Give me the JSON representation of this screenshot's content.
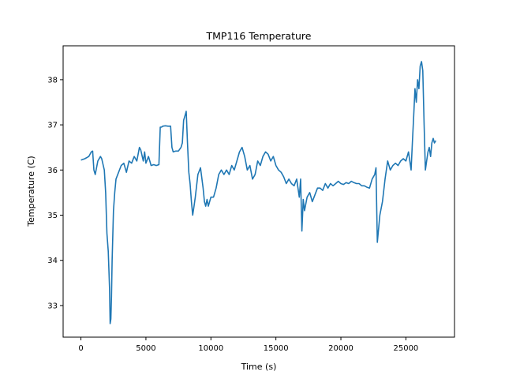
{
  "chart_data": {
    "type": "line",
    "title": "TMP116 Temperature",
    "xlabel": "Time (s)",
    "ylabel": "Temperature (C)",
    "xlim": [
      -1370,
      28740
    ],
    "ylim": [
      32.3,
      38.75
    ],
    "xticks": [
      0,
      5000,
      10000,
      15000,
      20000,
      25000
    ],
    "yticks": [
      33,
      34,
      35,
      36,
      37,
      38
    ],
    "grid": false,
    "line_color": "#1f77b4",
    "series": [
      {
        "x": [
          0,
          300,
          600,
          800,
          900,
          1000,
          1100,
          1300,
          1500,
          1600,
          1800,
          1900,
          2000,
          2100,
          2200,
          2250,
          2300,
          2350,
          2400,
          2500,
          2600,
          2700,
          2900,
          3100,
          3300,
          3500,
          3700,
          3900,
          4100,
          4300,
          4500,
          4600,
          4800,
          4900,
          5000,
          5200,
          5400,
          5600,
          5800,
          6000,
          6100,
          6200,
          6300,
          6500,
          6700,
          6900,
          7000,
          7100,
          7300,
          7500,
          7700,
          7800,
          7900,
          8000,
          8100,
          8200,
          8300,
          8400,
          8500,
          8600,
          8700,
          8800,
          9000,
          9200,
          9400,
          9500,
          9600,
          9700,
          9800,
          10000,
          10200,
          10400,
          10600,
          10800,
          11000,
          11200,
          11400,
          11600,
          11800,
          12000,
          12200,
          12400,
          12600,
          12800,
          13000,
          13200,
          13400,
          13600,
          13800,
          14000,
          14200,
          14400,
          14600,
          14800,
          15000,
          15200,
          15400,
          15600,
          15800,
          16000,
          16200,
          16400,
          16600,
          16800,
          16900,
          17000,
          17100,
          17200,
          17400,
          17600,
          17800,
          18000,
          18200,
          18400,
          18600,
          18800,
          19000,
          19200,
          19400,
          19600,
          19800,
          20000,
          20200,
          20400,
          20600,
          20800,
          21000,
          21200,
          21400,
          21600,
          21800,
          22000,
          22200,
          22400,
          22600,
          22700,
          22800,
          23000,
          23200,
          23400,
          23600,
          23800,
          24000,
          24200,
          24400,
          24600,
          24800,
          25000,
          25200,
          25400,
          25500,
          25600,
          25700,
          25800,
          25900,
          26000,
          26100,
          26200,
          26300,
          26400,
          26500,
          26600,
          26700,
          26800,
          26900,
          27000,
          27100,
          27200,
          27300
        ],
        "y": [
          36.22,
          36.25,
          36.3,
          36.4,
          36.42,
          36.0,
          35.9,
          36.2,
          36.3,
          36.25,
          36.0,
          35.5,
          34.6,
          34.2,
          33.4,
          32.6,
          32.7,
          33.2,
          34.0,
          35.1,
          35.5,
          35.8,
          35.95,
          36.1,
          36.15,
          35.95,
          36.2,
          36.15,
          36.3,
          36.2,
          36.5,
          36.45,
          36.2,
          36.4,
          36.15,
          36.3,
          36.1,
          36.12,
          36.1,
          36.12,
          36.95,
          36.95,
          36.97,
          36.98,
          36.97,
          36.97,
          36.5,
          36.4,
          36.42,
          36.42,
          36.5,
          36.6,
          37.1,
          37.2,
          37.3,
          36.6,
          35.95,
          35.7,
          35.3,
          35.0,
          35.2,
          35.4,
          35.9,
          36.05,
          35.6,
          35.3,
          35.2,
          35.35,
          35.2,
          35.4,
          35.4,
          35.6,
          35.9,
          36.0,
          35.9,
          36.0,
          35.9,
          36.1,
          36.0,
          36.2,
          36.4,
          36.5,
          36.3,
          36.0,
          36.1,
          35.8,
          35.9,
          36.2,
          36.1,
          36.3,
          36.4,
          36.35,
          36.2,
          36.3,
          36.1,
          36.0,
          35.95,
          35.85,
          35.7,
          35.8,
          35.7,
          35.65,
          35.8,
          35.4,
          35.8,
          34.65,
          35.35,
          35.1,
          35.4,
          35.5,
          35.3,
          35.45,
          35.6,
          35.6,
          35.55,
          35.7,
          35.6,
          35.7,
          35.65,
          35.7,
          35.75,
          35.7,
          35.68,
          35.72,
          35.7,
          35.75,
          35.72,
          35.7,
          35.7,
          35.65,
          35.65,
          35.62,
          35.6,
          35.8,
          35.9,
          36.05,
          34.4,
          35.0,
          35.3,
          35.8,
          36.2,
          36.0,
          36.1,
          36.15,
          36.1,
          36.2,
          36.25,
          36.2,
          36.4,
          36.0,
          36.6,
          37.2,
          37.8,
          37.5,
          38.0,
          37.8,
          38.3,
          38.4,
          38.2,
          37.0,
          36.0,
          36.2,
          36.4,
          36.5,
          36.3,
          36.6,
          36.7,
          36.6,
          36.65
        ]
      }
    ]
  }
}
